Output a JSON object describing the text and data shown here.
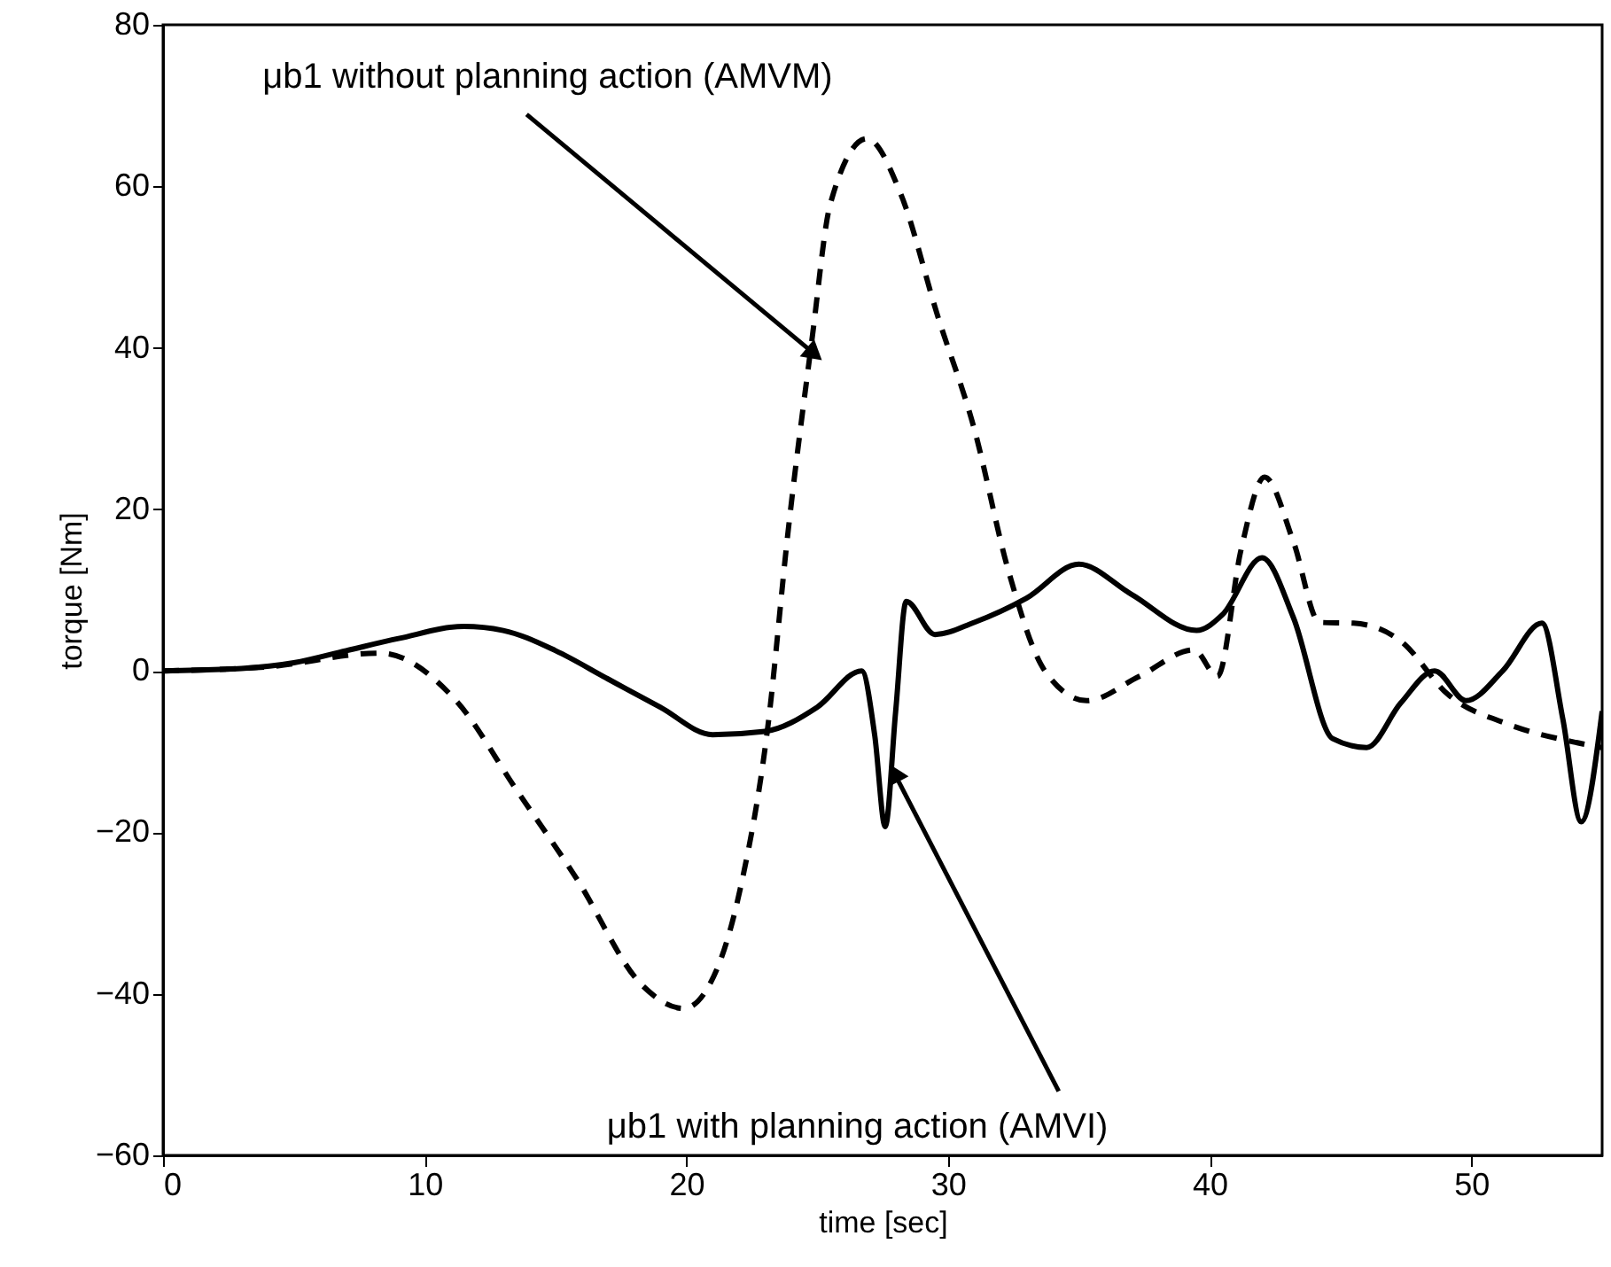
{
  "chart_data": {
    "type": "line",
    "xlabel": "time [sec]",
    "ylabel": "torque [Nm]",
    "xlim": [
      0,
      55
    ],
    "ylim": [
      -60,
      80
    ],
    "xticks": [
      0,
      10,
      20,
      30,
      40,
      50
    ],
    "yticks": [
      -60,
      -40,
      -20,
      0,
      20,
      40,
      60,
      80
    ],
    "grid": false,
    "series": [
      {
        "color": "#000000",
        "line_style": "solid",
        "x": [
          0,
          3,
          5,
          7,
          9,
          11.5,
          13,
          15,
          17,
          19,
          21,
          23,
          25,
          26.7,
          27.2,
          27.6,
          28.0,
          28.4,
          29.5,
          31,
          33,
          35,
          37,
          39.5,
          40.5,
          42,
          43.2,
          44.7,
          46,
          47.3,
          48.6,
          49.8,
          51.2,
          52.7,
          53.5,
          54.2,
          55
        ],
        "values": [
          0,
          0.3,
          1,
          2.5,
          4,
          5.5,
          5,
          2.5,
          -1,
          -4.5,
          -7.9,
          -7.5,
          -4.5,
          0,
          -8,
          -19.3,
          -5,
          8.6,
          4.5,
          6,
          9,
          13.2,
          9.5,
          5,
          7,
          14,
          6.6,
          -8.4,
          -9.5,
          -4,
          0,
          -3.7,
          0,
          5.9,
          -6,
          -18.7,
          -5
        ]
      },
      {
        "color": "#000000",
        "line_style": "dashed",
        "x": [
          0,
          4,
          8.3,
          11.2,
          13.5,
          15.8,
          18.3,
          19.9,
          21.2,
          22.1,
          23.1,
          23.9,
          24.8,
          25.5,
          26.9,
          28.2,
          29.6,
          31,
          32.3,
          33.7,
          35.3,
          37.3,
          39.4,
          40.3,
          41.2,
          42.1,
          43.2,
          44.2,
          45.5,
          47.3,
          49.1,
          51.4,
          53.9,
          55
        ],
        "values": [
          0,
          0.5,
          2.2,
          -3.7,
          -14.7,
          -25.7,
          -38.9,
          -41.8,
          -36.7,
          -26.4,
          -7.3,
          17.6,
          41,
          57.8,
          65.9,
          59,
          44,
          30,
          12.5,
          0,
          -3.7,
          -0.7,
          2.6,
          -0.7,
          15,
          24,
          16,
          6,
          5.9,
          3.7,
          -2.9,
          -6.6,
          -8.8,
          -9.5
        ]
      }
    ],
    "annotations": [
      {
        "text": "μb1    without planning action (AMVM)",
        "x": 24.8,
        "y": 39.5
      },
      {
        "text": "μb1  with planning action (AMVI)",
        "x": 28.0,
        "y": -13
      }
    ]
  }
}
